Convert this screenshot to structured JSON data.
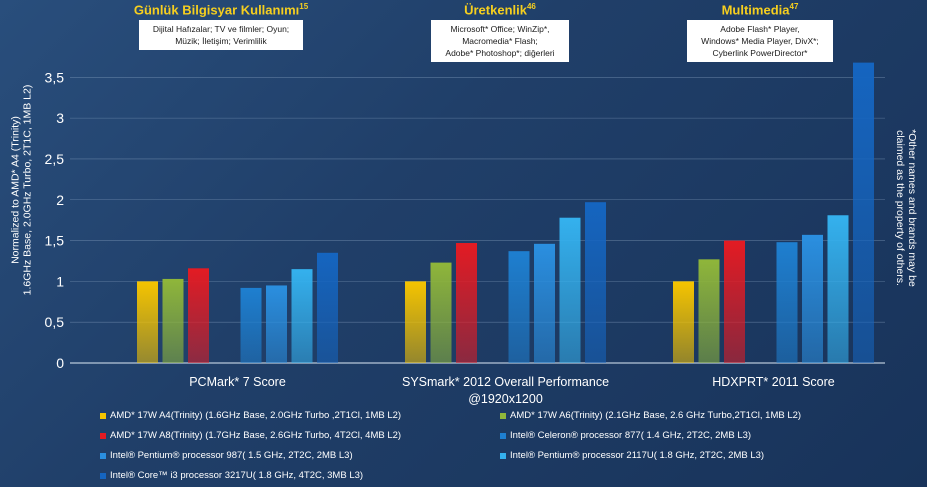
{
  "panels": [
    {
      "title": "Günlük Bilgisyar Kullanımı",
      "sup": "15",
      "lines": [
        "Dijital Hafızalar; TV ve filmler; Oyun;",
        "Müzik; İletişim; Verimlilik"
      ]
    },
    {
      "title": "Üretkenlik",
      "sup": "46",
      "lines": [
        "Microsoft* Office; WinZip*,",
        "Macromedia* Flash;",
        "Adobe* Photoshop*; diğerleri"
      ]
    },
    {
      "title": "Multimedia",
      "sup": "47",
      "lines": [
        "Adobe Flash* Player,",
        "Windows* Media Player, DivX*;",
        "Cyberlink PowerDirector*"
      ]
    }
  ],
  "ylabel_lines": [
    "Normalized to AMD* A4 (Trinity)",
    "1.6GHz Base, 2.0GHz Turbo, 2T1C, 1MB L2)"
  ],
  "side_note_lines": [
    "*Other names and brands may be",
    "claimed as the property of others."
  ],
  "chart_data": {
    "type": "bar",
    "categories": [
      "PCMark* 7 Score",
      "SYSmark* 2012 Overall Performance\n@1920x1200",
      "HDXPRT* 2011 Score"
    ],
    "ylim": [
      0,
      3.7
    ],
    "yticks": [
      0,
      0.5,
      1,
      1.5,
      2,
      2.5,
      3,
      3.5
    ],
    "ytick_labels": [
      "0",
      "0,5",
      "1",
      "1,5",
      "2",
      "2,5",
      "3",
      "3,5"
    ],
    "grid": true,
    "series": [
      {
        "name": "AMD* 17W A4(Trinity) (1.6GHz Base, 2.0GHz Turbo ,2T1Cl, 1MB L2)",
        "color": "#f5c400",
        "values": [
          1.0,
          1.0,
          1.0
        ]
      },
      {
        "name": "AMD* 17W A6(Trinity) (2.1GHz Base, 2.6 GHz Turbo,2T1Cl, 1MB L2)",
        "color": "#8fb63a",
        "values": [
          1.03,
          1.23,
          1.27
        ]
      },
      {
        "name": "AMD* 17W A8(Trinity) (1.7GHz Base, 2.6GHz Turbo, 4T2Cl, 4MB L2)",
        "color": "#e31b23",
        "values": [
          1.16,
          1.47,
          1.5
        ]
      },
      {
        "name": "Intel® Celeron® processor 877( 1.4 GHz, 2T2C, 2MB L3)",
        "color": "#1e7fd0",
        "values": [
          0.92,
          1.37,
          1.48
        ]
      },
      {
        "name": "Intel® Pentium® processor 987( 1.5 GHz, 2T2C, 2MB L3)",
        "color": "#2a8fe0",
        "values": [
          0.95,
          1.46,
          1.57
        ]
      },
      {
        "name": "Intel® Pentium® processor 2117U( 1.8 GHz, 2T2C, 2MB L3)",
        "color": "#34b1ee",
        "values": [
          1.15,
          1.78,
          1.81
        ]
      },
      {
        "name": "Intel® Core™ i3 processor 3217U( 1.8 GHz, 4T2C, 3MB L3)",
        "color": "#1565c0",
        "values": [
          1.35,
          1.97,
          3.68
        ]
      }
    ]
  }
}
